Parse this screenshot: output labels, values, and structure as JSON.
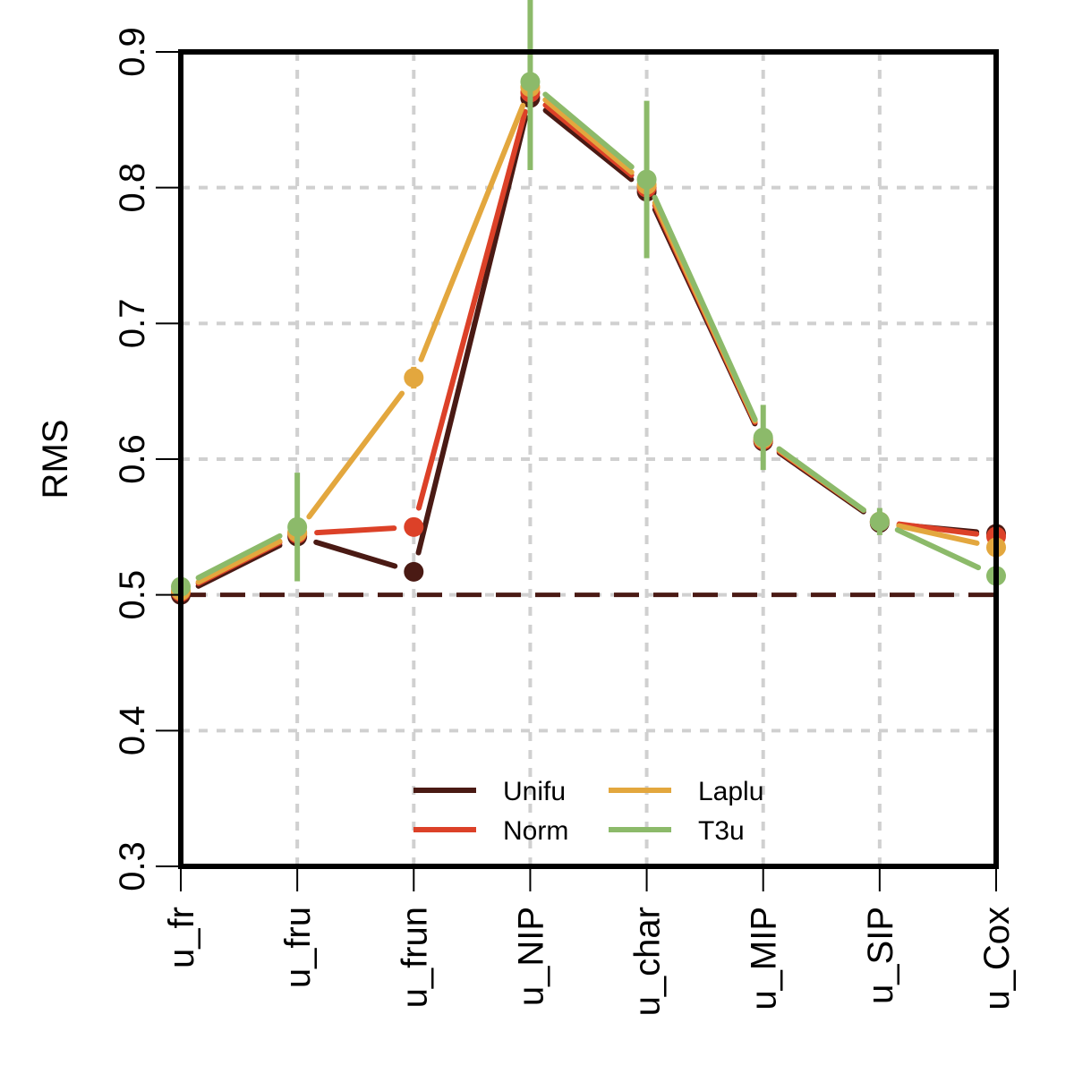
{
  "chart_data": {
    "type": "line",
    "title": "",
    "xlabel": "",
    "ylabel": "RMS",
    "ylim": [
      0.3,
      0.9
    ],
    "yticks": [
      "0.3",
      "0.4",
      "0.5",
      "0.6",
      "0.7",
      "0.8",
      "0.9"
    ],
    "categories": [
      "u_fr",
      "u_fru",
      "u_frun",
      "u_NIP",
      "u_char",
      "u_MIP",
      "u_SIP",
      "u_Cox"
    ],
    "grid": true,
    "legend_position": "bottom-center",
    "reference_line": {
      "y": 0.5,
      "style": "dashed",
      "color": "#4a1a14"
    },
    "series": [
      {
        "name": "Unifu",
        "color": "#4a1a14",
        "values": [
          0.5,
          0.543,
          0.517,
          0.866,
          0.797,
          0.613,
          0.553,
          0.545
        ],
        "err": [
          0.004,
          0.006,
          0.005,
          0.006,
          0.006,
          0.006,
          0.005,
          0.005
        ]
      },
      {
        "name": "Norm",
        "color": "#dc4128",
        "values": [
          0.502,
          0.545,
          0.55,
          0.87,
          0.8,
          0.614,
          0.554,
          0.543
        ],
        "err": [
          0.004,
          0.006,
          0.005,
          0.006,
          0.006,
          0.006,
          0.005,
          0.005
        ]
      },
      {
        "name": "Laplu",
        "color": "#e3a73e",
        "values": [
          0.503,
          0.546,
          0.66,
          0.874,
          0.802,
          0.615,
          0.554,
          0.535
        ],
        "err": [
          0.004,
          0.006,
          0.008,
          0.006,
          0.006,
          0.006,
          0.005,
          0.005
        ]
      },
      {
        "name": "T3u",
        "color": "#8cba6a",
        "values": [
          0.506,
          0.55,
          null,
          0.878,
          0.806,
          0.616,
          0.554,
          0.514
        ],
        "err": [
          0.006,
          0.04,
          null,
          0.065,
          0.058,
          0.024,
          0.01,
          0.004
        ]
      }
    ]
  }
}
